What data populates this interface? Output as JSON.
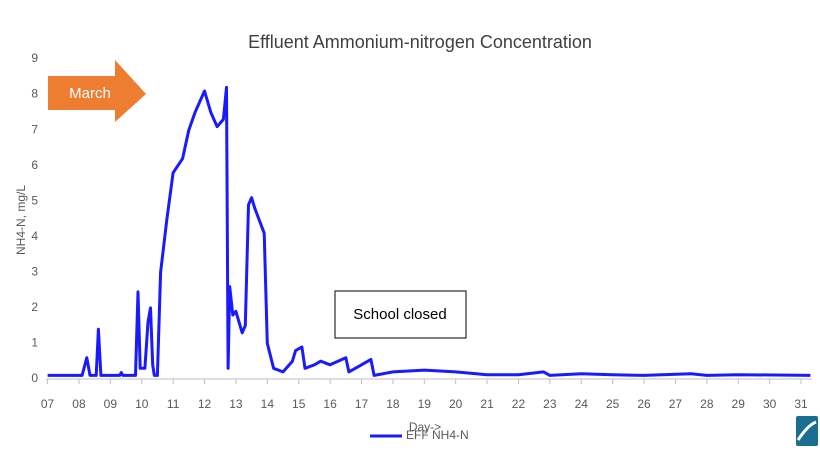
{
  "chart_data": {
    "type": "line",
    "title": "Effluent Ammonium-nitrogen Concentration",
    "x_label": "Day->",
    "y_label": "NH4-N, mg/L",
    "annotations": [
      "March",
      "School closed"
    ],
    "x": [
      7,
      8.1,
      8.25,
      8.35,
      8.55,
      8.62,
      8.7,
      9.3,
      9.35,
      9.4,
      9.8,
      9.88,
      9.95,
      10.1,
      10.2,
      10.28,
      10.35,
      10.4,
      10.5,
      10.6,
      10.8,
      11.0,
      11.3,
      11.5,
      11.7,
      12.0,
      12.2,
      12.4,
      12.6,
      12.7,
      12.75,
      12.8,
      12.9,
      13.0,
      13.2,
      13.3,
      13.4,
      13.5,
      13.6,
      13.9,
      14.0,
      14.2,
      14.5,
      14.8,
      14.9,
      15.1,
      15.2,
      15.5,
      15.7,
      16.0,
      16.5,
      16.6,
      17.0,
      17.3,
      17.4,
      18.0,
      19.0,
      20.0,
      21.0,
      22.0,
      22.8,
      23.0,
      24.0,
      25.0,
      26.0,
      27.5,
      28.0,
      29.0,
      31.3
    ],
    "series": [
      {
        "name": "EFF NH4-N",
        "color": "#1a1aff",
        "values": [
          0.1,
          0.1,
          0.6,
          0.1,
          0.1,
          1.4,
          0.1,
          0.1,
          0.18,
          0.1,
          0.1,
          2.45,
          0.3,
          0.3,
          1.6,
          2.0,
          0.4,
          0.1,
          0.1,
          3.0,
          4.5,
          5.8,
          6.2,
          7.0,
          7.5,
          8.1,
          7.5,
          7.1,
          7.3,
          8.2,
          0.3,
          2.6,
          1.8,
          1.9,
          1.3,
          1.5,
          4.9,
          5.1,
          4.8,
          4.1,
          1.0,
          0.3,
          0.2,
          0.5,
          0.8,
          0.9,
          0.3,
          0.4,
          0.5,
          0.4,
          0.6,
          0.2,
          0.4,
          0.55,
          0.1,
          0.2,
          0.25,
          0.2,
          0.12,
          0.12,
          0.2,
          0.1,
          0.15,
          0.12,
          0.1,
          0.15,
          0.1,
          0.12,
          0.1
        ]
      }
    ],
    "xlim": [
      6.95,
      31.35
    ],
    "ylim": [
      0,
      9
    ],
    "xticks": [
      {
        "value": 7,
        "label": "07"
      },
      {
        "value": 8,
        "label": "08"
      },
      {
        "value": 9,
        "label": "09"
      },
      10,
      11,
      12,
      13,
      14,
      15,
      16,
      17,
      18,
      19,
      20,
      21,
      22,
      23,
      24,
      25,
      26,
      27,
      28,
      29,
      30,
      31
    ],
    "yticks": [
      0,
      1,
      2,
      3,
      4,
      5,
      6,
      7,
      8,
      9
    ],
    "grid": false,
    "legend": "bottom"
  }
}
